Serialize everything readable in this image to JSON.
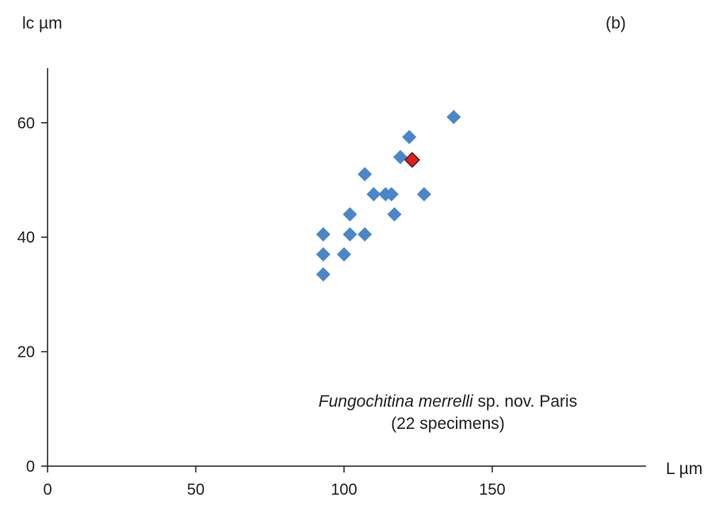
{
  "chart_data": {
    "type": "scatter",
    "panel_label": "(b)",
    "xlabel": "L µm",
    "ylabel": "lc µm",
    "xlim": [
      0,
      170
    ],
    "ylim": [
      0,
      70
    ],
    "xticks": [
      0,
      50,
      100,
      150
    ],
    "yticks": [
      0,
      20,
      40,
      60
    ],
    "grid": false,
    "annotation": {
      "italic": "Fungochitina merrelli",
      "normal": " sp. nov. Paris",
      "line2": "(22 specimens)"
    },
    "series": [
      {
        "color": "#4a86c8",
        "marker": "diamond",
        "points": [
          [
            93,
            33.5
          ],
          [
            93,
            37
          ],
          [
            93,
            40.5
          ],
          [
            100,
            37
          ],
          [
            102,
            40.5
          ],
          [
            102,
            44
          ],
          [
            107,
            40.5
          ],
          [
            107,
            51
          ],
          [
            110,
            47.5
          ],
          [
            114,
            47.5
          ],
          [
            116,
            47.5
          ],
          [
            117,
            44
          ],
          [
            119,
            54
          ],
          [
            122,
            57.5
          ],
          [
            127,
            47.5
          ],
          [
            137,
            61
          ]
        ]
      },
      {
        "color": "#e02020",
        "marker": "diamond",
        "points": [
          [
            123,
            53.5
          ]
        ]
      }
    ]
  }
}
